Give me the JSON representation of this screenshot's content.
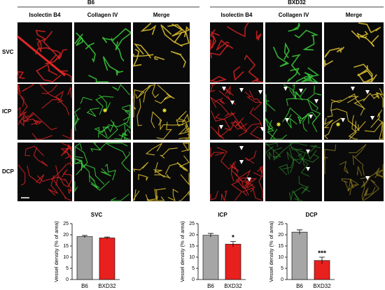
{
  "groups": [
    {
      "title": "B6",
      "columns": [
        "Isolectin B4",
        "Collagen IV",
        "Merge"
      ]
    },
    {
      "title": "BXD32",
      "columns": [
        "Isolectin B4",
        "Collagen IV",
        "Merge"
      ]
    }
  ],
  "rows": [
    "SVC",
    "ICP",
    "DCP"
  ],
  "chart_data": [
    {
      "type": "bar",
      "title": "SVC",
      "ylabel": "Vessel density (% of area)",
      "categories": [
        "B6",
        "BXD32"
      ],
      "values": [
        19.2,
        18.6
      ],
      "errors": [
        0.5,
        0.4
      ],
      "colors": [
        "#a6a6a6",
        "#e8201e"
      ],
      "ylim": [
        0,
        25
      ],
      "yticks": [
        0,
        5,
        10,
        15,
        20,
        25
      ]
    },
    {
      "type": "bar",
      "title": "ICP",
      "ylabel": "Vessel density (% of area)",
      "categories": [
        "B6",
        "BXD32"
      ],
      "values": [
        19.8,
        15.8
      ],
      "errors": [
        0.8,
        1.2
      ],
      "colors": [
        "#a6a6a6",
        "#e8201e"
      ],
      "ylim": [
        0,
        25
      ],
      "yticks": [
        0,
        5,
        10,
        15,
        20,
        25
      ],
      "annotations": [
        {
          "x": "BXD32",
          "text": "*"
        }
      ]
    },
    {
      "type": "bar",
      "title": "DCP",
      "ylabel": "Vessel density (% of area)",
      "categories": [
        "B6",
        "BXD32"
      ],
      "values": [
        21.2,
        8.5
      ],
      "errors": [
        1.0,
        1.5
      ],
      "colors": [
        "#a6a6a6",
        "#e8201e"
      ],
      "ylim": [
        0,
        25
      ],
      "yticks": [
        0,
        5,
        10,
        15,
        20,
        25
      ],
      "annotations": [
        {
          "x": "BXD32",
          "text": "***"
        }
      ]
    }
  ]
}
